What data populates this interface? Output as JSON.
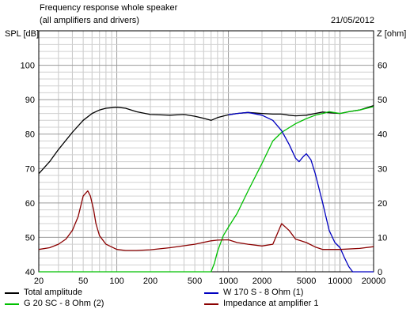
{
  "chart_data": {
    "type": "line",
    "title": "Frequency response whole speaker",
    "subtitle": "(all amplifiers and drivers)",
    "date": "21/05/2012",
    "ylabel": "SPL [dB]",
    "y2label": "Z [ohm]",
    "xscale": "log",
    "xlim": [
      20,
      20000
    ],
    "ylim": [
      40,
      110
    ],
    "y2lim": [
      0,
      70
    ],
    "grid": true,
    "legend_position": "bottom",
    "x_ticks": [
      "20",
      "50",
      "100",
      "200",
      "500",
      "1000",
      "2000",
      "5000",
      "10000",
      "20000"
    ],
    "y_ticks": [
      "40",
      "50",
      "60",
      "70",
      "80",
      "90",
      "100"
    ],
    "y2_ticks": [
      "0",
      "10",
      "20",
      "30",
      "40",
      "50",
      "60"
    ],
    "series": [
      {
        "name": "Total amplitude",
        "color": "#000000",
        "x": [
          20,
          25,
          30,
          40,
          50,
          60,
          70,
          80,
          100,
          120,
          150,
          200,
          300,
          400,
          500,
          600,
          700,
          800,
          1000,
          1200,
          1500,
          2000,
          2500,
          3000,
          3500,
          4000,
          5000,
          6000,
          7000,
          8000,
          10000,
          12000,
          15000,
          20000
        ],
        "y": [
          68.5,
          72,
          75.5,
          80.5,
          84,
          86,
          87,
          87.5,
          87.8,
          87.5,
          86.5,
          85.7,
          85.5,
          85.7,
          85.2,
          84.6,
          84,
          84.8,
          85.6,
          86,
          86.3,
          86,
          85.8,
          85.8,
          85.5,
          85.3,
          85.5,
          86,
          86.4,
          86.2,
          86,
          86.5,
          87,
          88.3
        ]
      },
      {
        "name": "G 20 SC - 8 Ohm (2)",
        "color": "#00c000",
        "x": [
          20,
          600,
          700,
          750,
          800,
          900,
          1000,
          1200,
          1500,
          2000,
          2500,
          3000,
          4000,
          5000,
          6000,
          7000,
          8000,
          10000,
          12000,
          15000,
          20000
        ],
        "y": [
          40,
          40,
          40,
          42.5,
          46,
          50.5,
          53,
          57,
          63.5,
          71.5,
          78,
          80.5,
          83,
          84.5,
          85.5,
          86,
          86.5,
          86,
          86.5,
          87,
          88
        ]
      },
      {
        "name": "W 170 S - 8 Ohm (1)",
        "color": "#0000c0",
        "x": [
          1000,
          1200,
          1500,
          2000,
          2500,
          3000,
          3500,
          4000,
          4300,
          4700,
          5000,
          5500,
          6000,
          7000,
          8000,
          9000,
          10000,
          11000,
          12000,
          13000,
          14000,
          20000
        ],
        "y": [
          85.6,
          86,
          86.3,
          85.5,
          84,
          81,
          77,
          73,
          72,
          73.5,
          74.3,
          72.5,
          68.5,
          60,
          52,
          48.5,
          47,
          44,
          41.5,
          40,
          40,
          40
        ]
      },
      {
        "name": "Impedance at amplifier 1",
        "color": "#8b0000",
        "x": [
          20,
          25,
          30,
          35,
          40,
          45,
          50,
          55,
          58,
          62,
          65,
          70,
          80,
          100,
          120,
          150,
          200,
          300,
          500,
          700,
          800,
          1000,
          1200,
          1500,
          2000,
          2500,
          3000,
          3500,
          4000,
          5000,
          6000,
          7000,
          8000,
          10000,
          15000,
          20000
        ],
        "y": [
          6.5,
          7,
          8,
          9.5,
          12,
          16,
          22,
          23.5,
          22,
          18,
          14,
          10.5,
          8,
          6.5,
          6.2,
          6.2,
          6.4,
          7,
          8,
          9,
          9.2,
          9.3,
          8.5,
          8,
          7.5,
          8,
          14,
          12,
          9.5,
          8.5,
          7.2,
          6.5,
          6.5,
          6.5,
          6.8,
          7.3
        ]
      }
    ]
  }
}
